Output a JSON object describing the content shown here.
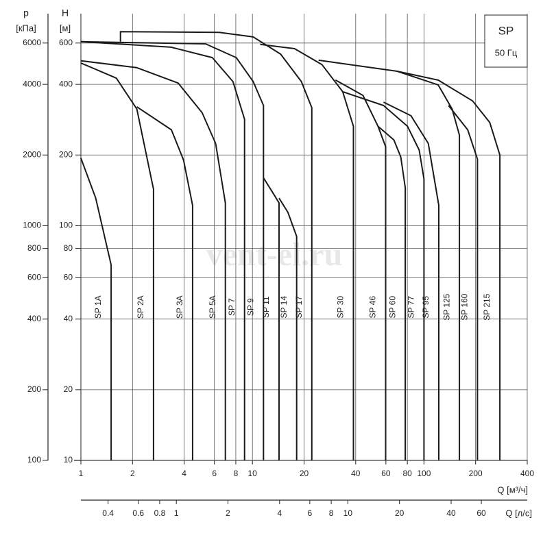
{
  "chart_data": {
    "type": "line",
    "ylabel": "H",
    "yunit": "[м]",
    "y2label": "p",
    "y2unit": "[кПа]",
    "xlabel": "Q [м³/ч]",
    "x2label": "Q [л/с]",
    "box_title": "SP",
    "box_subtitle": "50 Гц",
    "watermark": "vent-el.ru",
    "log_x": true,
    "log_y": true,
    "grid": true,
    "xlim": [
      1,
      400
    ],
    "xticks": [
      1,
      2,
      4,
      6,
      8,
      10,
      20,
      40,
      60,
      80,
      100,
      200,
      400
    ],
    "ylim": [
      10,
      800
    ],
    "yticks": [
      10,
      20,
      40,
      60,
      80,
      100,
      200,
      400,
      600
    ],
    "y2lim": [
      100,
      8000
    ],
    "y2ticks": [
      100,
      200,
      400,
      600,
      800,
      1000,
      2000,
      4000,
      6000
    ],
    "x2lim": [
      0.2778,
      111.1
    ],
    "x2ticks": [
      0.4,
      0.6,
      0.8,
      1,
      2,
      4,
      6,
      8,
      10,
      20,
      40,
      60
    ],
    "series": [
      {
        "name": "SP 1A",
        "color": "#1a1a1a",
        "x": [
          1,
          1.22,
          1.5,
          1.5
        ],
        "values": [
          194,
          131,
          68,
          10
        ]
      },
      {
        "name": "SP 2A",
        "color": "#1a1a1a",
        "x": [
          1,
          1.61,
          2.12,
          2.65,
          2.65
        ],
        "values": [
          493,
          425,
          314,
          143,
          10
        ]
      },
      {
        "name": "SP 3A",
        "color": "#1a1a1a",
        "x": [
          2.12,
          3.37,
          3.97,
          4.48,
          4.48
        ],
        "values": [
          321,
          256,
          190,
          122,
          10
        ]
      },
      {
        "name": "SP 5A",
        "color": "#1a1a1a",
        "x": [
          1,
          2.12,
          3.69,
          5.09,
          6.1,
          6.95,
          6.95
        ],
        "values": [
          504,
          471,
          405,
          303,
          224,
          125,
          10
        ]
      },
      {
        "name": "SP 7",
        "color": "#1a1a1a",
        "x": [
          1,
          3.36,
          5.84,
          7.7,
          9.0,
          9.0
        ],
        "values": [
          608,
          576,
          520,
          411,
          284,
          10
        ]
      },
      {
        "name": "SP 9",
        "color": "#1a1a1a",
        "x": [
          1,
          5.33,
          8.05,
          10.1,
          11.6,
          11.6
        ],
        "values": [
          608,
          595,
          520,
          411,
          325,
          10
        ]
      },
      {
        "name": "SP 11",
        "color": "#1a1a1a",
        "x": [
          11.6,
          13.4,
          14.3,
          14.3
        ],
        "values": [
          160,
          135,
          125,
          10
        ]
      },
      {
        "name": "SP 14",
        "color": "#1a1a1a",
        "x": [
          14.3,
          16.1,
          18.1,
          18.1
        ],
        "values": [
          131,
          114,
          90,
          10
        ]
      },
      {
        "name": "SP 17",
        "color": "#1a1a1a",
        "x": [
          1.7,
          1.7,
          6.4,
          10.1,
          14.6,
          19.3,
          22.2,
          22.2
        ],
        "values": [
          608,
          671,
          666,
          637,
          538,
          411,
          318,
          10
        ]
      },
      {
        "name": "SP 30",
        "color": "#1a1a1a",
        "x": [
          11.1,
          17.6,
          25.4,
          33.6,
          38.8,
          38.8
        ],
        "values": [
          592,
          568,
          486,
          372,
          265,
          10
        ]
      },
      {
        "name": "SP 46",
        "color": "#1a1a1a",
        "x": [
          30.5,
          44.1,
          54.0,
          59.8,
          59.8
        ],
        "values": [
          417,
          359,
          265,
          217,
          10
        ]
      },
      {
        "name": "SP 60",
        "color": "#1a1a1a",
        "x": [
          54.0,
          66.8,
          73.3,
          77.8,
          77.8
        ],
        "values": [
          265,
          232,
          196,
          145,
          10
        ]
      },
      {
        "name": "SP 77",
        "color": "#1a1a1a",
        "x": [
          33.6,
          58.1,
          80.2,
          93.8,
          100,
          100
        ],
        "values": [
          372,
          325,
          265,
          210,
          158,
          10
        ]
      },
      {
        "name": "SP 95",
        "color": "#1a1a1a",
        "x": [
          58.1,
          84,
          106,
          122,
          122
        ],
        "values": [
          336,
          294,
          224,
          122,
          10
        ]
      },
      {
        "name": "SP 125",
        "color": "#1a1a1a",
        "x": [
          24.3,
          69.8,
          121,
          146,
          161,
          161
        ],
        "values": [
          507,
          455,
          398,
          314,
          243,
          10
        ]
      },
      {
        "name": "SP 160",
        "color": "#1a1a1a",
        "x": [
          139,
          180,
          205,
          205
        ],
        "values": [
          325,
          256,
          192,
          10
        ]
      },
      {
        "name": "SP 215",
        "color": "#1a1a1a",
        "x": [
          69.8,
          121,
          192,
          242,
          277,
          277
        ],
        "values": [
          455,
          417,
          340,
          275,
          200,
          10
        ]
      }
    ]
  }
}
